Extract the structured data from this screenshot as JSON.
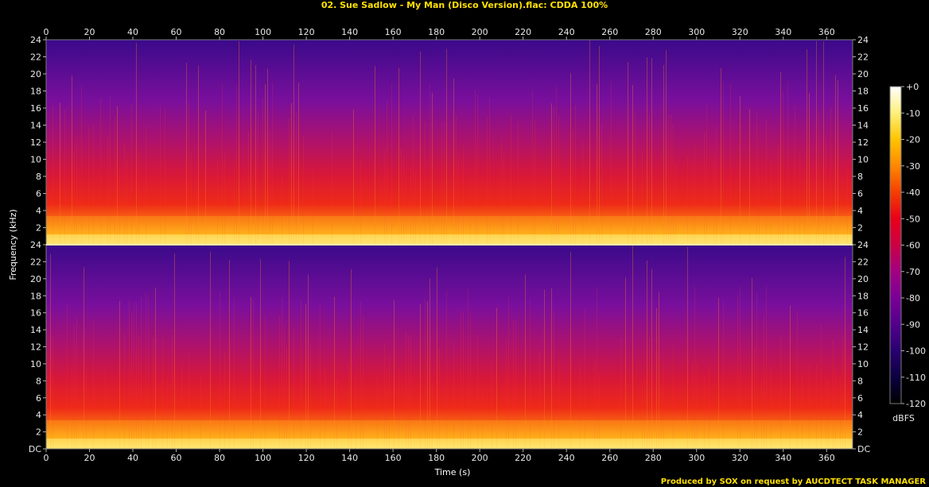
{
  "header": {
    "title": "02. Sue Sadlow - My Man (Disco Version).flac: CDDA 100%"
  },
  "footer": {
    "credit": "Produced by SOX on request by AUCDTECT TASK MANAGER"
  },
  "chart_data": {
    "type": "heatmap",
    "title": "02. Sue Sadlow - My Man (Disco Version).flac: CDDA 100%",
    "xlabel": "Time (s)",
    "ylabel": "Frequency (kHz)",
    "xlim": [
      0,
      372
    ],
    "ylim": [
      0,
      24
    ],
    "x_ticks": [
      0,
      20,
      40,
      60,
      80,
      100,
      120,
      140,
      160,
      180,
      200,
      220,
      240,
      260,
      280,
      300,
      320,
      340,
      360
    ],
    "y_ticks_top": [
      "24",
      "22",
      "20",
      "18",
      "16",
      "14",
      "12",
      "10",
      "8",
      "6",
      "4",
      "2"
    ],
    "y_ticks_bottom": [
      "24",
      "22",
      "20",
      "18",
      "16",
      "14",
      "12",
      "10",
      "8",
      "6",
      "4",
      "2",
      "DC"
    ],
    "channels": 2,
    "colorbar": {
      "label": "dBFS",
      "ticks": [
        "+0",
        "-10",
        "-20",
        "-30",
        "-40",
        "-50",
        "-60",
        "-70",
        "-80",
        "-90",
        "-100",
        "-110",
        "-120"
      ],
      "range": [
        -120,
        0
      ],
      "colors": [
        "#000000",
        "#0c0040",
        "#2a0070",
        "#52008c",
        "#7a0096",
        "#a30082",
        "#cc0044",
        "#e8001a",
        "#f53f00",
        "#ff8800",
        "#ffc400",
        "#fff07a",
        "#ffffff"
      ]
    },
    "colors": {
      "background": "#000000",
      "axis": "#7a7a7a",
      "title_text": "#ffe000"
    }
  }
}
